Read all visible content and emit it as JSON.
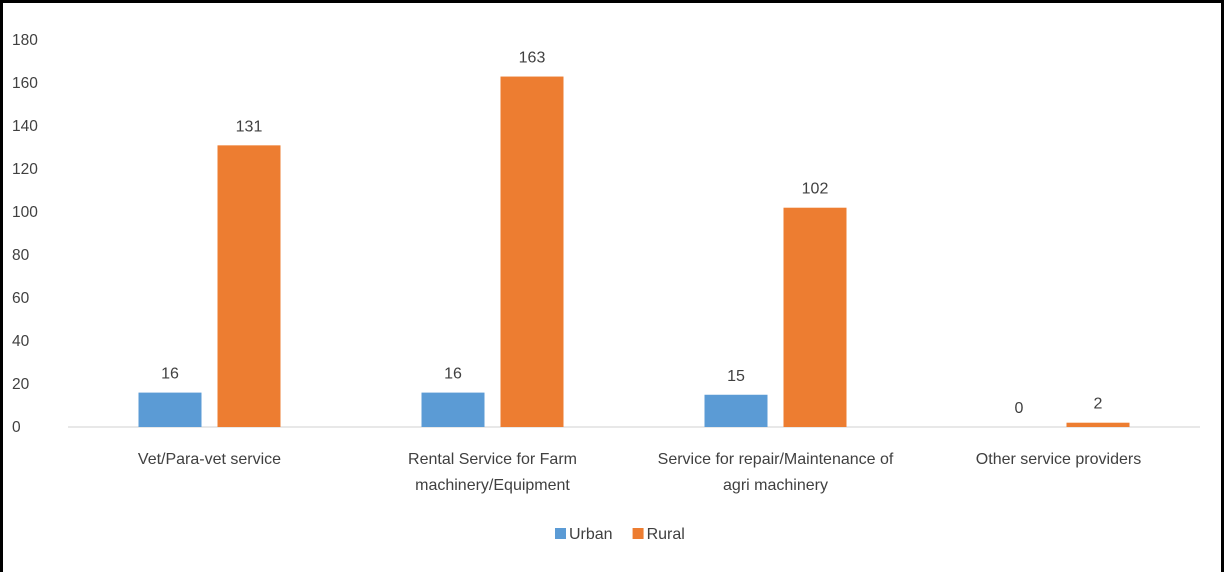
{
  "chart_data": {
    "type": "bar",
    "categories": [
      [
        "Vet/Para-vet service"
      ],
      [
        "Rental Service for Farm",
        "machinery/Equipment"
      ],
      [
        "Service for repair/Maintenance of",
        "agri machinery"
      ],
      [
        "Other service providers"
      ]
    ],
    "series": [
      {
        "name": "Urban",
        "values": [
          16,
          16,
          15,
          0
        ],
        "color": "#5b9bd5"
      },
      {
        "name": "Rural",
        "values": [
          131,
          163,
          102,
          2
        ],
        "color": "#ed7d31"
      }
    ],
    "ylim": [
      0,
      180
    ],
    "yticks": [
      0,
      20,
      40,
      60,
      80,
      100,
      120,
      140,
      160,
      180
    ],
    "title": "",
    "xlabel": "",
    "ylabel": "",
    "grid": false,
    "data_labels": true,
    "legend": "bottom-center"
  }
}
